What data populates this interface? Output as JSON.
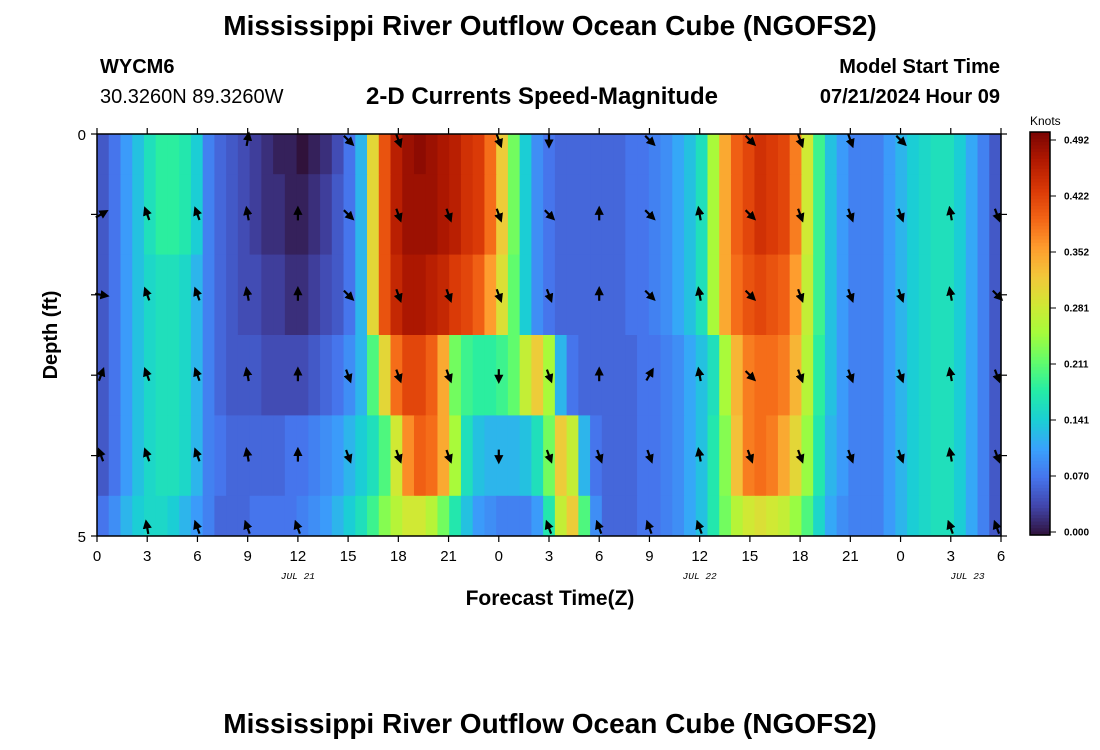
{
  "header": {
    "title": "Mississippi River Outflow Ocean Cube (NGOFS2)",
    "station": "WYCM6",
    "coordinates": "30.3260N  89.3260W",
    "subtitle": "2-D Currents Speed-Magnitude",
    "model_start_label": "Model Start Time",
    "model_start_value": "07/21/2024 Hour 09"
  },
  "footer": {
    "title": "Mississippi River Outflow Ocean Cube (NGOFS2)"
  },
  "chart_data": {
    "type": "heatmap",
    "title": "2-D Currents Speed-Magnitude",
    "xlabel": "Forecast Time(Z)",
    "ylabel": "Depth (ft)",
    "x_range_hours": [
      0,
      54
    ],
    "x_ticks": [
      {
        "hour": 0,
        "label": "0"
      },
      {
        "hour": 3,
        "label": "3"
      },
      {
        "hour": 6,
        "label": "6"
      },
      {
        "hour": 9,
        "label": "9"
      },
      {
        "hour": 12,
        "label": "12"
      },
      {
        "hour": 15,
        "label": "15"
      },
      {
        "hour": 18,
        "label": "18"
      },
      {
        "hour": 21,
        "label": "21"
      },
      {
        "hour": 24,
        "label": "0"
      },
      {
        "hour": 27,
        "label": "3"
      },
      {
        "hour": 30,
        "label": "6"
      },
      {
        "hour": 33,
        "label": "9"
      },
      {
        "hour": 36,
        "label": "12"
      },
      {
        "hour": 39,
        "label": "15"
      },
      {
        "hour": 42,
        "label": "18"
      },
      {
        "hour": 45,
        "label": "21"
      },
      {
        "hour": 48,
        "label": "0"
      },
      {
        "hour": 51,
        "label": "3"
      },
      {
        "hour": 54,
        "label": "6"
      }
    ],
    "date_labels": [
      {
        "hour": 12,
        "label": "JUL 21"
      },
      {
        "hour": 36,
        "label": "JUL 22"
      },
      {
        "hour": 52,
        "label": "JUL 23"
      }
    ],
    "y_range": [
      0,
      5
    ],
    "y_tick_labels": [
      {
        "value": 0,
        "label": "0"
      },
      {
        "value": 5,
        "label": "5"
      }
    ],
    "colorbar": {
      "unit": "Knots",
      "range": [
        0,
        0.492
      ],
      "ticks": [
        "0.492",
        "0.422",
        "0.352",
        "0.281",
        "0.211",
        "0.141",
        "0.070",
        "0.000"
      ],
      "colors": [
        "#30123b",
        "#4145ab",
        "#4675ed",
        "#39a2fc",
        "#1bcfd4",
        "#24eca6",
        "#61fc6c",
        "#a4fc3b",
        "#d1e834",
        "#f3c63a",
        "#fe9b2d",
        "#f36315",
        "#d93806",
        "#b11901",
        "#7a0403"
      ]
    },
    "layers": [
      {
        "depth_range": [
          0,
          0.5
        ],
        "values": [
          0.05,
          0.07,
          0.1,
          0.13,
          0.16,
          0.18,
          0.18,
          0.17,
          0.14,
          0.08,
          0.06,
          0.05,
          0.04,
          0.03,
          0.02,
          0.01,
          0.01,
          0.0,
          0.01,
          0.02,
          0.04,
          0.07,
          0.12,
          0.3,
          0.4,
          0.45,
          0.47,
          0.48,
          0.47,
          0.46,
          0.45,
          0.43,
          0.42,
          0.38,
          0.31,
          0.22,
          0.14,
          0.09,
          0.07,
          0.06,
          0.06,
          0.06,
          0.06,
          0.06,
          0.06,
          0.07,
          0.07,
          0.08,
          0.09,
          0.11,
          0.13,
          0.16,
          0.25,
          0.34,
          0.39,
          0.41,
          0.43,
          0.42,
          0.41,
          0.37,
          0.28,
          0.19,
          0.13,
          0.1,
          0.08,
          0.08,
          0.08,
          0.1,
          0.12,
          0.14,
          0.15,
          0.16,
          0.16,
          0.14,
          0.11,
          0.08,
          0.05
        ]
      },
      {
        "depth_range": [
          0.5,
          1.5
        ],
        "values": [
          0.05,
          0.07,
          0.1,
          0.13,
          0.16,
          0.18,
          0.18,
          0.17,
          0.14,
          0.08,
          0.06,
          0.05,
          0.04,
          0.03,
          0.02,
          0.02,
          0.01,
          0.01,
          0.02,
          0.03,
          0.05,
          0.07,
          0.12,
          0.3,
          0.4,
          0.45,
          0.47,
          0.47,
          0.47,
          0.46,
          0.45,
          0.43,
          0.42,
          0.38,
          0.31,
          0.22,
          0.14,
          0.09,
          0.07,
          0.06,
          0.06,
          0.06,
          0.06,
          0.06,
          0.06,
          0.07,
          0.07,
          0.08,
          0.09,
          0.11,
          0.13,
          0.16,
          0.25,
          0.34,
          0.39,
          0.41,
          0.43,
          0.42,
          0.41,
          0.37,
          0.28,
          0.19,
          0.13,
          0.1,
          0.08,
          0.08,
          0.08,
          0.1,
          0.12,
          0.14,
          0.15,
          0.16,
          0.16,
          0.14,
          0.11,
          0.08,
          0.05
        ]
      },
      {
        "depth_range": [
          1.5,
          2.5
        ],
        "values": [
          0.05,
          0.07,
          0.1,
          0.13,
          0.15,
          0.16,
          0.16,
          0.15,
          0.12,
          0.08,
          0.06,
          0.05,
          0.04,
          0.04,
          0.03,
          0.03,
          0.02,
          0.02,
          0.03,
          0.04,
          0.05,
          0.07,
          0.12,
          0.3,
          0.4,
          0.44,
          0.46,
          0.46,
          0.45,
          0.44,
          0.42,
          0.41,
          0.39,
          0.35,
          0.29,
          0.21,
          0.14,
          0.09,
          0.07,
          0.06,
          0.06,
          0.06,
          0.06,
          0.06,
          0.06,
          0.07,
          0.07,
          0.08,
          0.09,
          0.11,
          0.13,
          0.16,
          0.25,
          0.34,
          0.38,
          0.4,
          0.41,
          0.4,
          0.39,
          0.35,
          0.27,
          0.19,
          0.13,
          0.1,
          0.08,
          0.08,
          0.08,
          0.1,
          0.12,
          0.14,
          0.15,
          0.16,
          0.16,
          0.14,
          0.11,
          0.08,
          0.05
        ]
      },
      {
        "depth_range": [
          2.5,
          3.5
        ],
        "values": [
          0.05,
          0.07,
          0.1,
          0.13,
          0.15,
          0.16,
          0.16,
          0.15,
          0.12,
          0.08,
          0.06,
          0.05,
          0.05,
          0.05,
          0.04,
          0.04,
          0.04,
          0.04,
          0.05,
          0.06,
          0.07,
          0.09,
          0.12,
          0.2,
          0.3,
          0.38,
          0.41,
          0.41,
          0.39,
          0.34,
          0.22,
          0.19,
          0.18,
          0.18,
          0.19,
          0.21,
          0.27,
          0.31,
          0.25,
          0.12,
          0.07,
          0.06,
          0.06,
          0.06,
          0.06,
          0.06,
          0.07,
          0.07,
          0.08,
          0.09,
          0.11,
          0.13,
          0.16,
          0.25,
          0.33,
          0.37,
          0.38,
          0.38,
          0.37,
          0.33,
          0.26,
          0.18,
          0.13,
          0.1,
          0.08,
          0.08,
          0.08,
          0.1,
          0.12,
          0.14,
          0.15,
          0.16,
          0.16,
          0.14,
          0.11,
          0.08,
          0.05
        ]
      },
      {
        "depth_range": [
          3.5,
          4.5
        ],
        "values": [
          0.05,
          0.07,
          0.1,
          0.13,
          0.15,
          0.16,
          0.16,
          0.15,
          0.12,
          0.08,
          0.07,
          0.06,
          0.06,
          0.06,
          0.06,
          0.06,
          0.07,
          0.07,
          0.08,
          0.09,
          0.1,
          0.12,
          0.14,
          0.16,
          0.2,
          0.28,
          0.36,
          0.39,
          0.38,
          0.34,
          0.25,
          0.16,
          0.13,
          0.12,
          0.12,
          0.12,
          0.13,
          0.16,
          0.22,
          0.31,
          0.27,
          0.12,
          0.07,
          0.06,
          0.06,
          0.06,
          0.07,
          0.07,
          0.08,
          0.09,
          0.11,
          0.13,
          0.17,
          0.23,
          0.32,
          0.37,
          0.38,
          0.37,
          0.34,
          0.3,
          0.24,
          0.17,
          0.12,
          0.1,
          0.08,
          0.08,
          0.08,
          0.1,
          0.12,
          0.14,
          0.15,
          0.16,
          0.16,
          0.14,
          0.11,
          0.08,
          0.05
        ]
      },
      {
        "depth_range": [
          4.5,
          5
        ],
        "values": [
          0.07,
          0.09,
          0.12,
          0.14,
          0.15,
          0.15,
          0.14,
          0.12,
          0.1,
          0.08,
          0.06,
          0.06,
          0.06,
          0.07,
          0.07,
          0.07,
          0.07,
          0.08,
          0.09,
          0.1,
          0.12,
          0.14,
          0.16,
          0.19,
          0.23,
          0.26,
          0.28,
          0.28,
          0.26,
          0.22,
          0.17,
          0.13,
          0.1,
          0.09,
          0.08,
          0.08,
          0.08,
          0.1,
          0.17,
          0.27,
          0.31,
          0.2,
          0.09,
          0.06,
          0.06,
          0.06,
          0.07,
          0.07,
          0.08,
          0.09,
          0.11,
          0.13,
          0.17,
          0.22,
          0.26,
          0.28,
          0.29,
          0.28,
          0.27,
          0.24,
          0.2,
          0.15,
          0.11,
          0.09,
          0.08,
          0.08,
          0.08,
          0.1,
          0.12,
          0.14,
          0.15,
          0.16,
          0.16,
          0.14,
          0.11,
          0.08,
          0.05
        ]
      }
    ],
    "vector_times_hours": [
      0,
      3,
      6,
      9,
      12,
      15,
      18,
      21,
      24,
      27,
      30,
      33,
      36,
      39,
      42,
      45,
      48,
      51,
      54
    ],
    "vector_rows": [
      {
        "depth": 0,
        "directions_deg": [
          null,
          null,
          null,
          10,
          null,
          135,
          160,
          null,
          160,
          180,
          null,
          135,
          null,
          135,
          160,
          160,
          135,
          null,
          null
        ]
      },
      {
        "depth": 1,
        "directions_deg": [
          60,
          340,
          340,
          350,
          0,
          135,
          160,
          160,
          160,
          135,
          0,
          135,
          350,
          135,
          160,
          160,
          160,
          350,
          160
        ]
      },
      {
        "depth": 2,
        "directions_deg": [
          100,
          340,
          340,
          350,
          0,
          135,
          160,
          160,
          160,
          160,
          0,
          135,
          350,
          135,
          160,
          160,
          160,
          350,
          135
        ]
      },
      {
        "depth": 3,
        "directions_deg": [
          20,
          340,
          340,
          350,
          0,
          160,
          160,
          160,
          180,
          160,
          0,
          30,
          350,
          135,
          160,
          160,
          160,
          350,
          160
        ]
      },
      {
        "depth": 4,
        "directions_deg": [
          340,
          340,
          340,
          350,
          0,
          160,
          160,
          160,
          180,
          160,
          160,
          160,
          350,
          160,
          160,
          160,
          160,
          350,
          160
        ]
      },
      {
        "depth": 5,
        "directions_deg": [
          null,
          350,
          340,
          340,
          340,
          null,
          null,
          null,
          null,
          340,
          340,
          340,
          340,
          null,
          null,
          null,
          null,
          340,
          340
        ]
      }
    ]
  }
}
